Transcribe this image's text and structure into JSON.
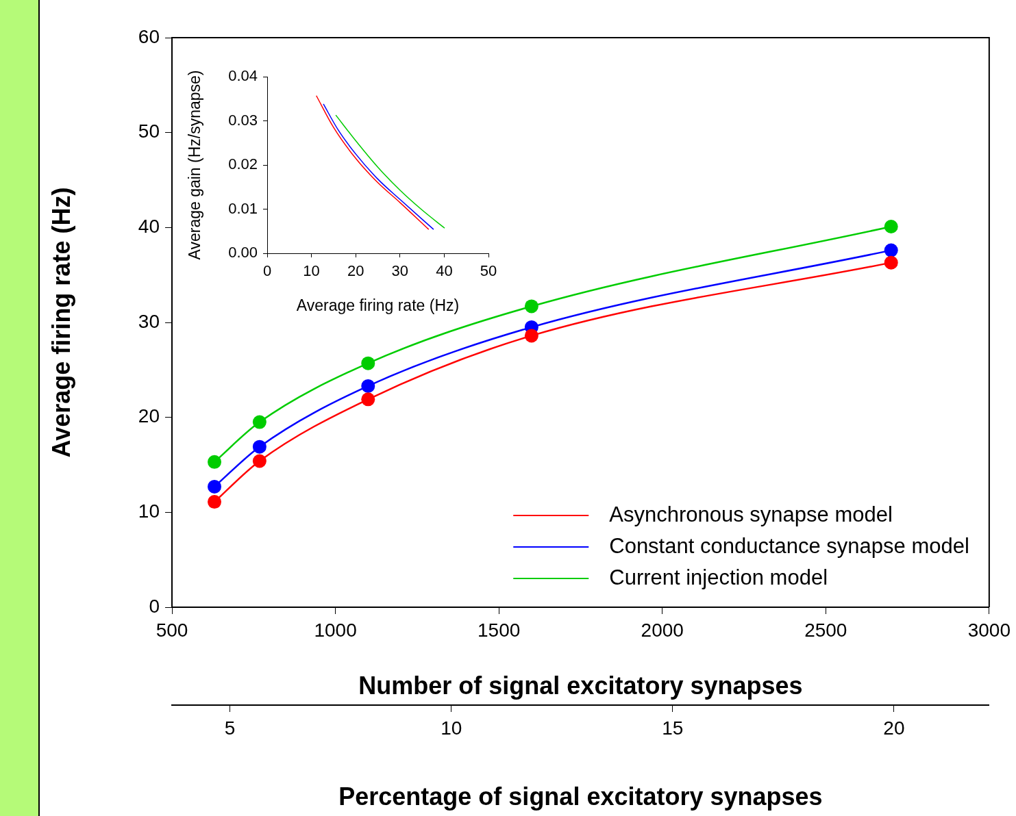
{
  "chart_data": [
    {
      "type": "line",
      "xlabel": "Number of signal excitatory synapses",
      "ylabel": "Average firing rate (Hz)",
      "x2label": "Percentage of signal excitatory synapses",
      "x": [
        630,
        768,
        1100,
        1600,
        2700
      ],
      "xlim": [
        500,
        3000
      ],
      "xticks": [
        500,
        1000,
        1500,
        2000,
        2500,
        3000
      ],
      "ylim": [
        0,
        60
      ],
      "yticks": [
        0,
        10,
        20,
        30,
        40,
        50,
        60
      ],
      "x2lim": [
        3.69,
        22.15
      ],
      "x2ticks": [
        5,
        10,
        15,
        20
      ],
      "legend": "bottom right",
      "series": [
        {
          "name": "Asynchronous synapse model",
          "color": "#ff0000",
          "values": [
            11.1,
            15.4,
            21.9,
            28.6,
            36.3
          ]
        },
        {
          "name": "Constant conductance synapse model",
          "color": "#0000ff",
          "values": [
            12.7,
            16.9,
            23.3,
            29.5,
            37.6
          ]
        },
        {
          "name": "Current injection model",
          "color": "#00cc00",
          "values": [
            15.3,
            19.5,
            25.7,
            31.7,
            40.1
          ]
        },
        {
          "type": "scatter",
          "color": "#ff0000",
          "marker": "circle",
          "values": [
            11.1,
            15.4,
            21.9,
            28.6,
            36.3
          ]
        },
        {
          "type": "scatter",
          "color": "#0000ff",
          "marker": "circle",
          "values": [
            12.7,
            16.9,
            23.3,
            29.5,
            37.6
          ]
        },
        {
          "type": "scatter",
          "color": "#00cc00",
          "marker": "circle",
          "values": [
            15.3,
            19.5,
            25.7,
            31.7,
            40.1
          ]
        }
      ]
    },
    {
      "type": "line",
      "xlabel": "Average firing rate (Hz)",
      "ylabel": "Average gain (Hz/synapse)",
      "xlim": [
        0,
        50
      ],
      "xticks": [
        0,
        10,
        20,
        30,
        40,
        50
      ],
      "ylim": [
        0,
        0.04
      ],
      "yticks": [
        {
          "value": 0,
          "label": "0.00"
        },
        {
          "value": 0.01,
          "label": "0.01"
        },
        {
          "value": 0.02,
          "label": "0.02"
        },
        {
          "value": 0.03,
          "label": "0.03"
        },
        {
          "value": 0.04,
          "label": "0.04"
        }
      ],
      "series": [
        {
          "color": "#ff0000",
          "x": [
            11.1,
            15,
            20,
            25,
            30,
            36.5
          ],
          "values": [
            0.0357,
            0.0285,
            0.0215,
            0.016,
            0.0115,
            0.0054
          ]
        },
        {
          "color": "#0000ff",
          "x": [
            12.7,
            16,
            20,
            25,
            30,
            37.6
          ],
          "values": [
            0.0338,
            0.028,
            0.0225,
            0.0168,
            0.0122,
            0.0054
          ]
        },
        {
          "color": "#00cc00",
          "x": [
            15.5,
            20,
            25,
            30,
            35,
            40.1
          ],
          "values": [
            0.0313,
            0.0255,
            0.0195,
            0.0143,
            0.0098,
            0.0057
          ]
        }
      ]
    }
  ]
}
